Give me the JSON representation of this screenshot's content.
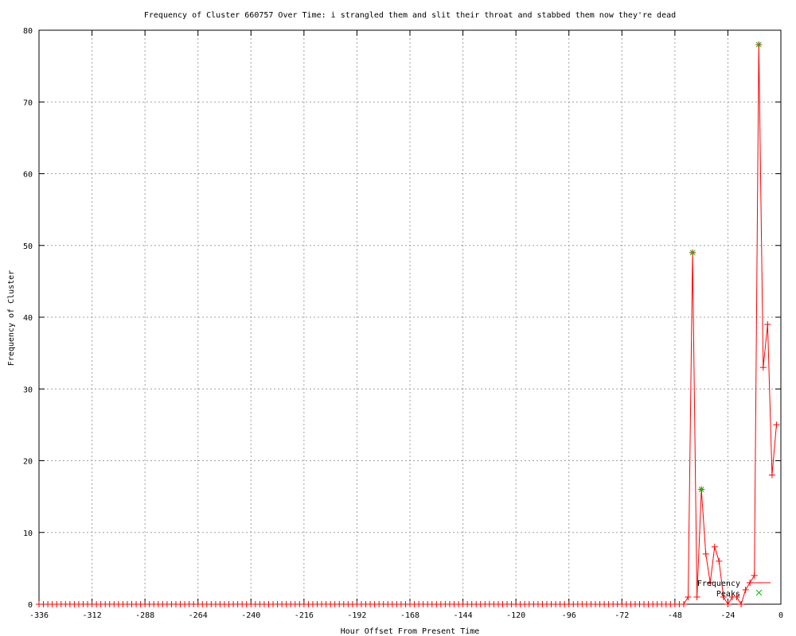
{
  "chart_data": {
    "type": "line",
    "title": "Frequency of Cluster 660757 Over Time: i strangled them and slit their throat and stabbed them now they're dead",
    "xlabel": "Hour Offset From Present Time",
    "ylabel": "Frequency of Cluster",
    "xlim": [
      -336,
      0
    ],
    "ylim": [
      0,
      80
    ],
    "grid": true,
    "legend_position": "bottom-right",
    "x_ticks": [
      -336,
      -312,
      -288,
      -264,
      -240,
      -216,
      -192,
      -168,
      -144,
      -120,
      -96,
      -72,
      -48,
      -24,
      0
    ],
    "y_ticks": [
      0,
      10,
      20,
      30,
      40,
      50,
      60,
      70,
      80
    ],
    "series": [
      {
        "name": "Frequency",
        "color": "#ff0000",
        "x": [
          -336,
          -334,
          -332,
          -330,
          -328,
          -326,
          -324,
          -322,
          -320,
          -318,
          -316,
          -314,
          -312,
          -310,
          -308,
          -306,
          -304,
          -302,
          -300,
          -298,
          -296,
          -294,
          -292,
          -290,
          -288,
          -286,
          -284,
          -282,
          -280,
          -278,
          -276,
          -274,
          -272,
          -270,
          -268,
          -266,
          -264,
          -262,
          -260,
          -258,
          -256,
          -254,
          -252,
          -250,
          -248,
          -246,
          -244,
          -242,
          -240,
          -238,
          -236,
          -234,
          -232,
          -230,
          -228,
          -226,
          -224,
          -222,
          -220,
          -218,
          -216,
          -214,
          -212,
          -210,
          -208,
          -206,
          -204,
          -202,
          -200,
          -198,
          -196,
          -194,
          -192,
          -190,
          -188,
          -186,
          -184,
          -182,
          -180,
          -178,
          -176,
          -174,
          -172,
          -170,
          -168,
          -166,
          -164,
          -162,
          -160,
          -158,
          -156,
          -154,
          -152,
          -150,
          -148,
          -146,
          -144,
          -142,
          -140,
          -138,
          -136,
          -134,
          -132,
          -130,
          -128,
          -126,
          -124,
          -122,
          -120,
          -118,
          -116,
          -114,
          -112,
          -110,
          -108,
          -106,
          -104,
          -102,
          -100,
          -98,
          -96,
          -94,
          -92,
          -90,
          -88,
          -86,
          -84,
          -82,
          -80,
          -78,
          -76,
          -74,
          -72,
          -70,
          -68,
          -66,
          -64,
          -62,
          -60,
          -58,
          -56,
          -54,
          -52,
          -50,
          -48,
          -46,
          -44,
          -42,
          -40,
          -38,
          -36,
          -34,
          -32,
          -30,
          -28,
          -26,
          -24,
          -22,
          -20,
          -18,
          -16,
          -14,
          -12,
          -10,
          -8,
          -6,
          -4,
          -2
        ],
        "y": [
          0,
          0,
          0,
          0,
          0,
          0,
          0,
          0,
          0,
          0,
          0,
          0,
          0,
          0,
          0,
          0,
          0,
          0,
          0,
          0,
          0,
          0,
          0,
          0,
          0,
          0,
          0,
          0,
          0,
          0,
          0,
          0,
          0,
          0,
          0,
          0,
          0,
          0,
          0,
          0,
          0,
          0,
          0,
          0,
          0,
          0,
          0,
          0,
          0,
          0,
          0,
          0,
          0,
          0,
          0,
          0,
          0,
          0,
          0,
          0,
          0,
          0,
          0,
          0,
          0,
          0,
          0,
          0,
          0,
          0,
          0,
          0,
          0,
          0,
          0,
          0,
          0,
          0,
          0,
          0,
          0,
          0,
          0,
          0,
          0,
          0,
          0,
          0,
          0,
          0,
          0,
          0,
          0,
          0,
          0,
          0,
          0,
          0,
          0,
          0,
          0,
          0,
          0,
          0,
          0,
          0,
          0,
          0,
          0,
          0,
          0,
          0,
          0,
          0,
          0,
          0,
          0,
          0,
          0,
          0,
          0,
          0,
          0,
          0,
          0,
          0,
          0,
          0,
          0,
          0,
          0,
          0,
          0,
          0,
          0,
          0,
          0,
          0,
          0,
          0,
          0,
          0,
          0,
          0,
          0,
          0,
          0,
          1,
          49,
          1,
          16,
          7,
          3,
          8,
          6,
          1,
          0,
          1,
          1,
          0,
          2,
          3,
          4,
          78,
          33,
          39,
          18,
          25
        ]
      },
      {
        "name": "Peaks",
        "color": "#00c000",
        "x": [
          -40,
          -36,
          -10
        ],
        "y": [
          49,
          16,
          78
        ]
      }
    ]
  }
}
